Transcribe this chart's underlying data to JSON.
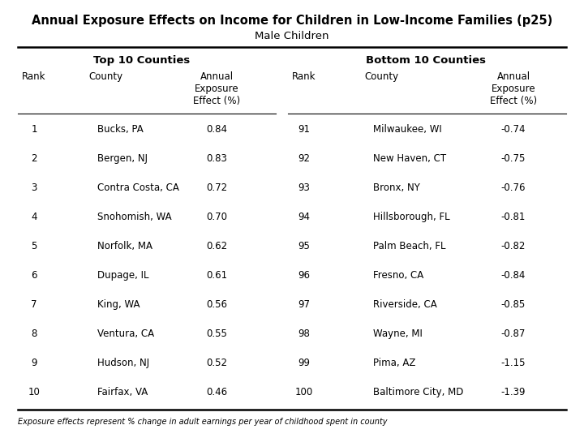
{
  "title": "Annual Exposure Effects on Income for Children in Low-Income Families (p25)",
  "subtitle": "Male Children",
  "footnote": "Exposure effects represent % change in adult earnings per year of childhood spent in county",
  "top_header": "Top 10 Counties",
  "bottom_header": "Bottom 10 Counties",
  "top_data": [
    [
      1,
      "Bucks, PA",
      "0.84"
    ],
    [
      2,
      "Bergen, NJ",
      "0.83"
    ],
    [
      3,
      "Contra Costa, CA",
      "0.72"
    ],
    [
      4,
      "Snohomish, WA",
      "0.70"
    ],
    [
      5,
      "Norfolk, MA",
      "0.62"
    ],
    [
      6,
      "Dupage, IL",
      "0.61"
    ],
    [
      7,
      "King, WA",
      "0.56"
    ],
    [
      8,
      "Ventura, CA",
      "0.55"
    ],
    [
      9,
      "Hudson, NJ",
      "0.52"
    ],
    [
      10,
      "Fairfax, VA",
      "0.46"
    ]
  ],
  "bottom_data": [
    [
      91,
      "Milwaukee, WI",
      "-0.74"
    ],
    [
      92,
      "New Haven, CT",
      "-0.75"
    ],
    [
      93,
      "Bronx, NY",
      "-0.76"
    ],
    [
      94,
      "Hillsborough, FL",
      "-0.81"
    ],
    [
      95,
      "Palm Beach, FL",
      "-0.82"
    ],
    [
      96,
      "Fresno, CA",
      "-0.84"
    ],
    [
      97,
      "Riverside, CA",
      "-0.85"
    ],
    [
      98,
      "Wayne, MI",
      "-0.87"
    ],
    [
      99,
      "Pima, AZ",
      "-1.15"
    ],
    [
      100,
      "Baltimore City, MD",
      "-1.39"
    ]
  ],
  "bg_color": "#ffffff",
  "text_color": "#000000",
  "title_fontsize": 10.5,
  "subtitle_fontsize": 9.5,
  "header_fontsize": 9.5,
  "col_hdr_fontsize": 8.5,
  "data_fontsize": 8.5,
  "footnote_fontsize": 7.0
}
